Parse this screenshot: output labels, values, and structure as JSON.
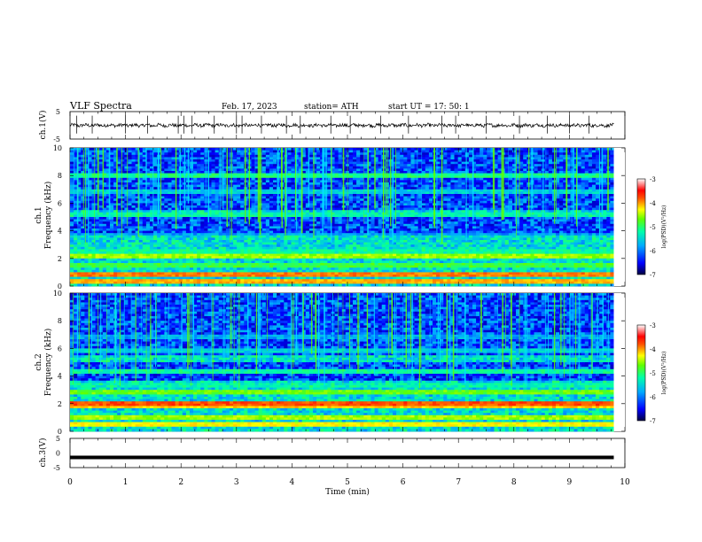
{
  "header": {
    "title": "VLF  Spectra",
    "date": "Feb. 17, 2023",
    "station": "station= ATH",
    "start": "start  UT  =    17: 50: 1"
  },
  "chart_data": [
    {
      "type": "line",
      "id": "ch1-waveform",
      "ylabel": "ch.1(V)",
      "ylim": [
        -5,
        5
      ],
      "yticks": [
        "5",
        "-5"
      ],
      "xlim": [
        0,
        10
      ],
      "data_end_min": 9.8,
      "baseline": 0,
      "noise_amplitude": 0.6,
      "spike_times": [
        0.12,
        0.4,
        1.0,
        1.4,
        1.95,
        2.05,
        2.2,
        2.6,
        3.0,
        3.1,
        3.45,
        3.9,
        4.15,
        4.7,
        5.05,
        5.6,
        6.1,
        6.7,
        6.95,
        7.5,
        8.1,
        8.6,
        9.0,
        9.35
      ]
    },
    {
      "type": "heatmap",
      "id": "ch1-spectrogram",
      "ylabel": "ch.1\nFrequency (kHz)",
      "ylim": [
        0,
        10
      ],
      "yticks": [
        "0",
        "2",
        "4",
        "6",
        "8",
        "10"
      ],
      "xlim": [
        0,
        10
      ],
      "data_end_min": 9.8,
      "colorbar": {
        "label": "log(PSD)(V²/Hz)",
        "range": [
          -7,
          -3
        ],
        "ticks": [
          "-3",
          "-4",
          "-5",
          "-6",
          "-7"
        ]
      },
      "bands_kHz_logPSD": [
        [
          0.3,
          -4.2
        ],
        [
          0.8,
          -4.0
        ],
        [
          1.5,
          -5.2
        ],
        [
          2.1,
          -4.8
        ],
        [
          2.5,
          -5.5
        ],
        [
          3.6,
          -6.0
        ],
        [
          5.2,
          -5.6
        ],
        [
          6.8,
          -5.8
        ],
        [
          8.0,
          -5.4
        ]
      ]
    },
    {
      "type": "heatmap",
      "id": "ch2-spectrogram",
      "ylabel": "ch.2\nFrequency (kHz)",
      "ylim": [
        0,
        10
      ],
      "yticks": [
        "0",
        "2",
        "4",
        "6",
        "8",
        "10"
      ],
      "xlim": [
        0,
        10
      ],
      "data_end_min": 9.8,
      "colorbar": {
        "label": "log(PSD)(V²/Hz)",
        "range": [
          -7,
          -3
        ],
        "ticks": [
          "-3",
          "-4",
          "-5",
          "-6",
          "-7"
        ]
      },
      "bands_kHz_logPSD": [
        [
          0.5,
          -4.5
        ],
        [
          1.0,
          -4.8
        ],
        [
          1.9,
          -4.3
        ],
        [
          2.0,
          -3.8
        ],
        [
          2.9,
          -5.0
        ],
        [
          3.4,
          -5.6
        ],
        [
          4.3,
          -5.5
        ],
        [
          5.8,
          -5.8
        ],
        [
          6.9,
          -6.0
        ]
      ]
    },
    {
      "type": "line",
      "id": "ch3-waveform",
      "ylabel": "ch.3(V)",
      "ylim": [
        -5,
        5
      ],
      "yticks": [
        "5",
        "0",
        "-5"
      ],
      "xlim": [
        0,
        10
      ],
      "data_end_min": 9.8,
      "baseline": -1.5
    }
  ],
  "xaxis": {
    "label": "Time  (min)",
    "ticks": [
      "0",
      "1",
      "2",
      "3",
      "4",
      "5",
      "6",
      "7",
      "8",
      "9",
      "10"
    ]
  },
  "colors": {
    "scale": [
      "#000060",
      "#0000ff",
      "#00aaff",
      "#00ffaa",
      "#60ff00",
      "#ffff00",
      "#ff8000",
      "#ff0000",
      "#ffffff"
    ]
  }
}
